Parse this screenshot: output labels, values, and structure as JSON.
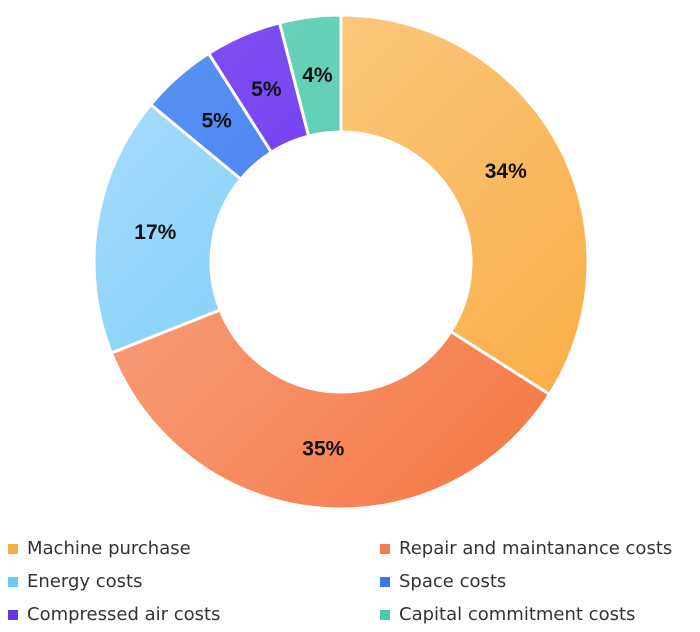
{
  "chart_data": {
    "type": "pie",
    "donut": true,
    "title": "",
    "categories": [
      "Machine purchase",
      "Repair and maintanance costs",
      "Energy costs",
      "Space costs",
      "Compressed air costs",
      "Capital commitment costs"
    ],
    "values": [
      34,
      35,
      17,
      5,
      5,
      4
    ],
    "value_labels": [
      "34%",
      "35%",
      "17%",
      "5%",
      "5%",
      "4%"
    ],
    "colors": [
      [
        "#FDD090",
        "#F8A93E"
      ],
      [
        "#FBAE92",
        "#F4743F"
      ],
      [
        "#ACDEFC",
        "#5FC4F7"
      ],
      [
        "#5E98F5",
        "#2E63E8"
      ],
      [
        "#8455F7",
        "#5B26E3"
      ],
      [
        "#71D6C0",
        "#43C2A3"
      ]
    ],
    "legend_colors": [
      "#F9AC45",
      "#F37C53",
      "#6CCBF5",
      "#3A76EC",
      "#6436E6",
      "#4EC8AA"
    ],
    "legend_position": "bottom",
    "start_angle_deg": 0,
    "direction": "clockwise"
  }
}
